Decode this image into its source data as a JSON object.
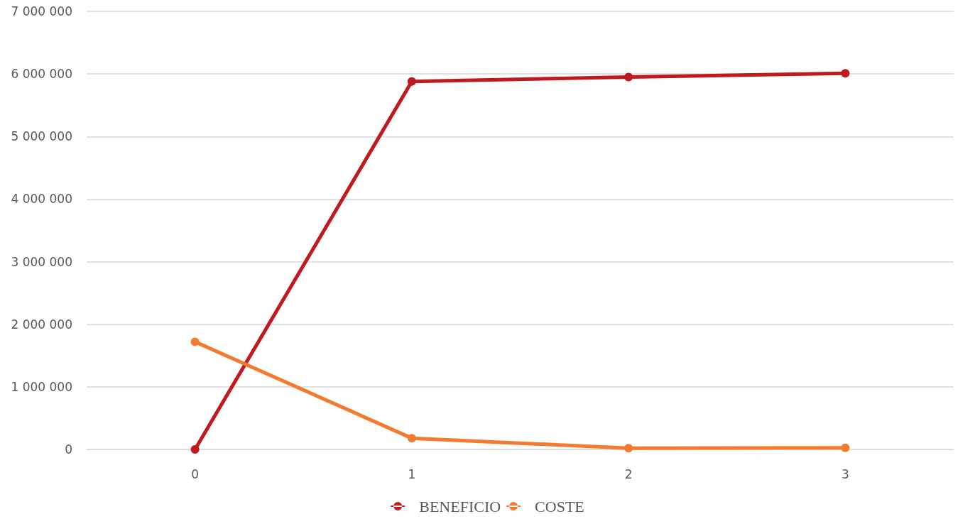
{
  "chart_data": {
    "type": "line",
    "categories": [
      "0",
      "1",
      "2",
      "3"
    ],
    "series": [
      {
        "name": "BENEFICIO",
        "color": "#c0191e",
        "values": [
          0,
          5880000,
          5950000,
          6010000
        ]
      },
      {
        "name": "COSTE",
        "color": "#f47a30",
        "values": [
          1720000,
          180000,
          20000,
          25000
        ]
      }
    ],
    "ylim": [
      0,
      7000000
    ],
    "yticks": [
      {
        "value": 0,
        "label": "0"
      },
      {
        "value": 1000000,
        "label": "1 000 000"
      },
      {
        "value": 2000000,
        "label": "2 000 000"
      },
      {
        "value": 3000000,
        "label": "3 000 000"
      },
      {
        "value": 4000000,
        "label": "4 000 000"
      },
      {
        "value": 5000000,
        "label": "5 000 000"
      },
      {
        "value": 6000000,
        "label": "6 000 000"
      },
      {
        "value": 7000000,
        "label": "7 000 000"
      }
    ],
    "grid": "y",
    "legend": "bottom",
    "marker": "circle",
    "line_style": "solid"
  }
}
